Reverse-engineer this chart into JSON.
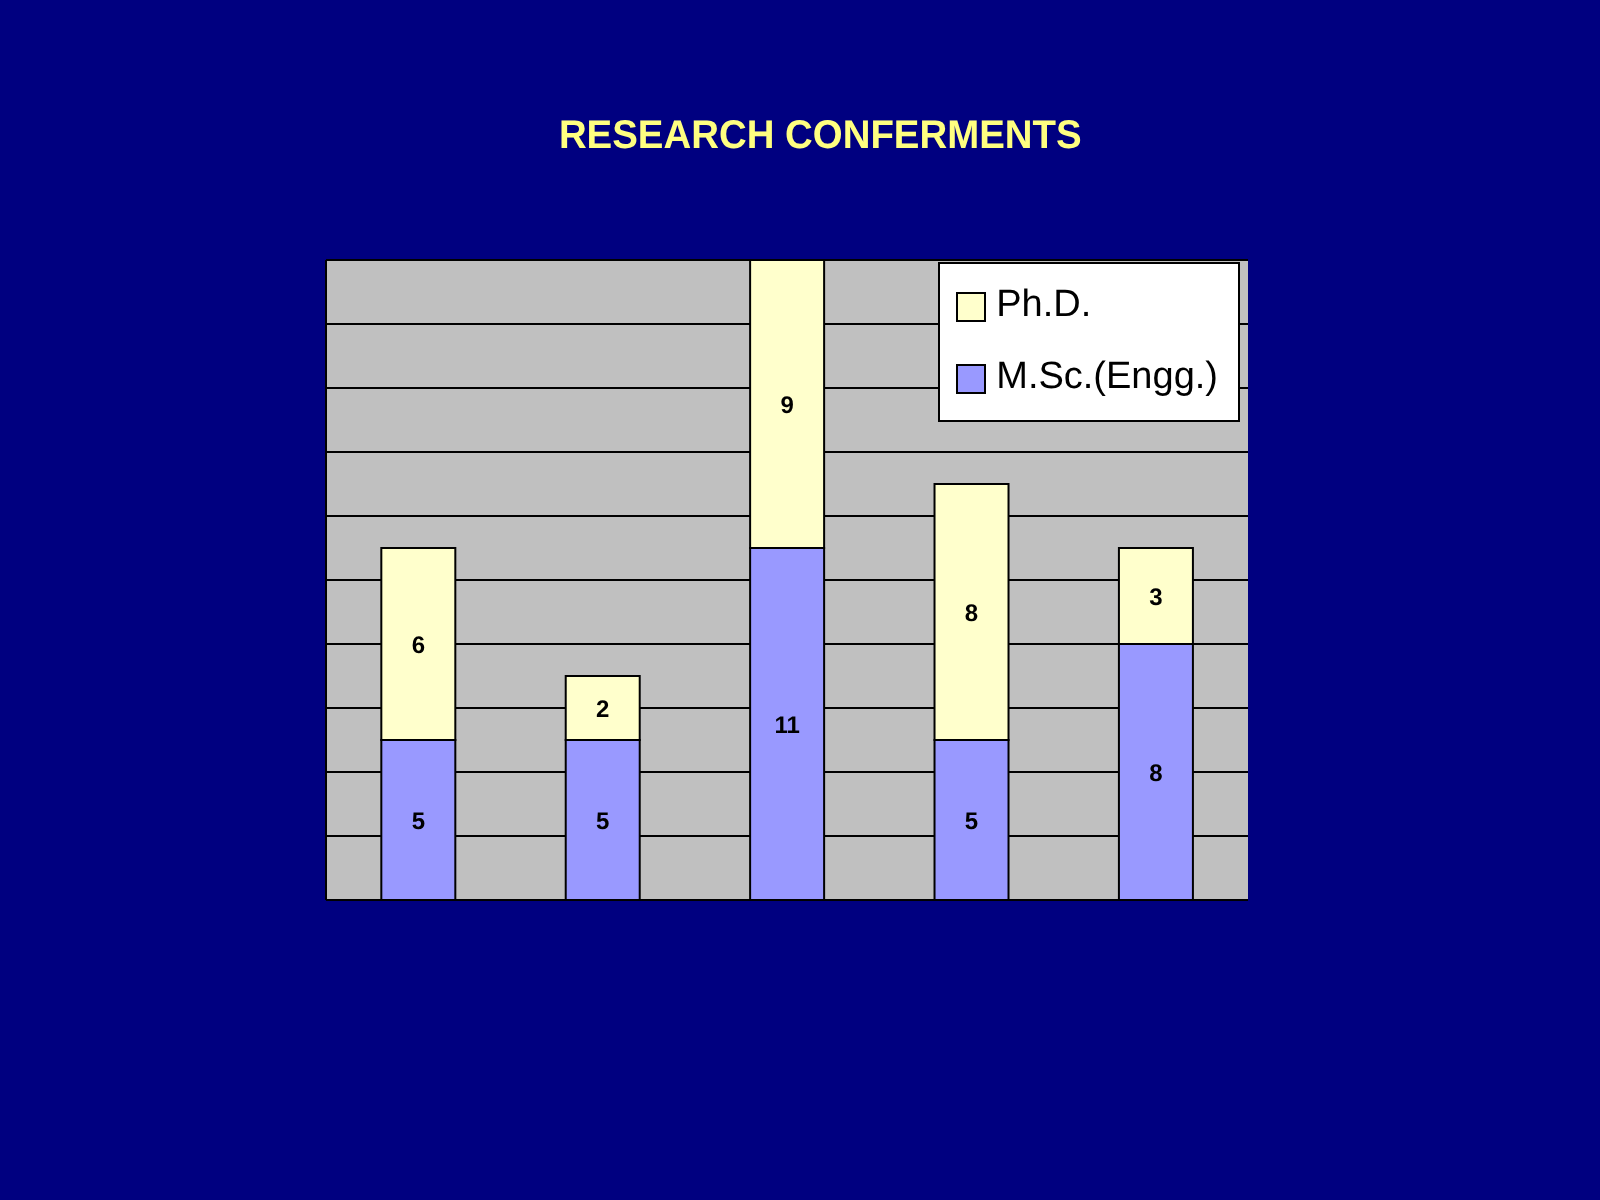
{
  "chart_data": {
    "type": "bar",
    "title": "RESEARCH CONFERMENTS",
    "categories": [
      null,
      null,
      null,
      null,
      null
    ],
    "series": [
      {
        "name": "M.Sc.(Engg.)",
        "color": "#9999ff",
        "values": [
          5,
          5,
          11,
          5,
          8
        ]
      },
      {
        "name": "Ph.D.",
        "color": "#ffffcc",
        "values": [
          6,
          2,
          9,
          8,
          3
        ]
      }
    ],
    "stacked": true,
    "data_labels": true,
    "ylim": [
      0,
      20
    ],
    "yticks": [
      {
        "value": 0,
        "label": null
      },
      {
        "value": 2,
        "label": null
      },
      {
        "value": 4,
        "label": null
      },
      {
        "value": 6,
        "label": null
      },
      {
        "value": 8,
        "label": null
      },
      {
        "value": 10,
        "label": null
      },
      {
        "value": 12,
        "label": null
      },
      {
        "value": 14,
        "label": null
      },
      {
        "value": 16,
        "label": null
      },
      {
        "value": 18,
        "label": null
      },
      {
        "value": 20,
        "label": null
      }
    ],
    "grid": "y",
    "legend": "top right"
  }
}
